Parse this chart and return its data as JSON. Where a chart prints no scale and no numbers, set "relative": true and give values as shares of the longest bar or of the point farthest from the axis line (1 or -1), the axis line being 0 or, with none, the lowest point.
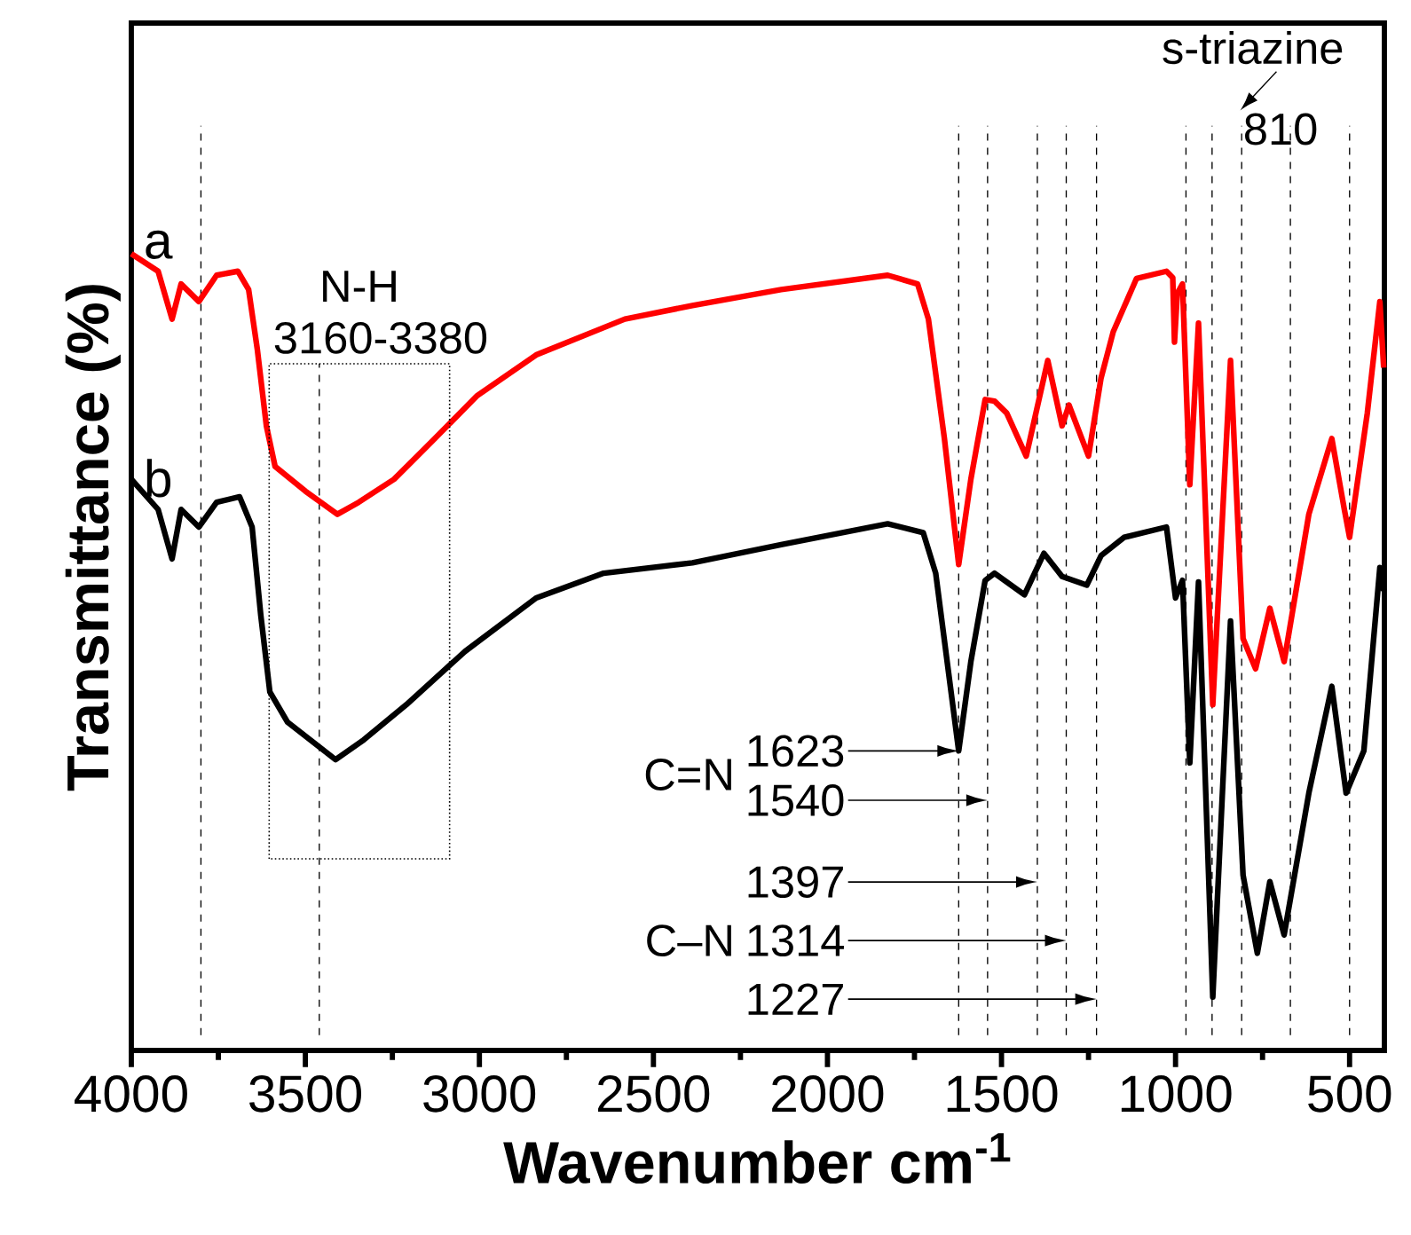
{
  "chart_data": {
    "type": "line",
    "relative": true,
    "xlabel": "Wavenumber cm$^{-1}$",
    "ylabel": "Transmittance (%)",
    "xlim": [
      4000,
      400
    ],
    "xticks": [
      4000,
      {
        "value": 3750,
        "label": null
      },
      3500,
      {
        "value": 3250,
        "label": null
      },
      3000,
      {
        "value": 2750,
        "label": null
      },
      2500,
      {
        "value": 2250,
        "label": null
      },
      2000,
      {
        "value": 1750,
        "label": null
      },
      1500,
      {
        "value": 1250,
        "label": null
      },
      1000,
      {
        "value": 750,
        "label": null
      },
      500
    ],
    "series": [
      {
        "name": "a",
        "color": "#ff0000",
        "x": [
          4000,
          3923,
          3883,
          3857,
          3806,
          3755,
          3694,
          3663,
          3638,
          3612,
          3587,
          3500,
          3408,
          3347,
          3245,
          3128,
          3006,
          2837,
          2582,
          2388,
          2133,
          1827,
          1741,
          1710,
          1664,
          1623,
          1588,
          1547,
          1520,
          1485,
          1429,
          1367,
          1326,
          1306,
          1250,
          1214,
          1179,
          1112,
          1026,
          1008,
          1003,
          995,
          980,
          959,
          934,
          893,
          842,
          806,
          770,
          729,
          688,
          617,
          551,
          515,
          500,
          449,
          413,
          402
        ],
        "values": [
          1.0,
          0.978,
          0.918,
          0.962,
          0.94,
          0.973,
          0.978,
          0.955,
          0.88,
          0.784,
          0.733,
          0.702,
          0.673,
          0.688,
          0.717,
          0.768,
          0.822,
          0.873,
          0.918,
          0.935,
          0.955,
          0.973,
          0.962,
          0.918,
          0.768,
          0.61,
          0.717,
          0.817,
          0.815,
          0.8,
          0.746,
          0.866,
          0.784,
          0.81,
          0.746,
          0.844,
          0.902,
          0.969,
          0.978,
          0.97,
          0.889,
          0.95,
          0.962,
          0.71,
          0.913,
          0.434,
          0.866,
          0.517,
          0.479,
          0.555,
          0.488,
          0.673,
          0.768,
          0.679,
          0.644,
          0.8,
          0.94,
          0.857
        ]
      },
      {
        "name": "b",
        "color": "#000000",
        "x": [
          4000,
          3923,
          3883,
          3857,
          3806,
          3755,
          3689,
          3653,
          3628,
          3602,
          3551,
          3413,
          3332,
          3210,
          3041,
          2837,
          2643,
          2388,
          2133,
          1827,
          1725,
          1689,
          1623,
          1588,
          1547,
          1520,
          1434,
          1378,
          1326,
          1255,
          1214,
          1148,
          1026,
          1000,
          980,
          959,
          934,
          893,
          842,
          806,
          765,
          729,
          688,
          617,
          551,
          510,
          459,
          413,
          402
        ],
        "values": [
          0.717,
          0.679,
          0.617,
          0.679,
          0.657,
          0.688,
          0.695,
          0.657,
          0.546,
          0.45,
          0.412,
          0.365,
          0.39,
          0.434,
          0.501,
          0.568,
          0.599,
          0.612,
          0.635,
          0.661,
          0.65,
          0.599,
          0.376,
          0.488,
          0.59,
          0.599,
          0.572,
          0.624,
          0.595,
          0.584,
          0.621,
          0.644,
          0.657,
          0.568,
          0.59,
          0.361,
          0.588,
          0.067,
          0.539,
          0.22,
          0.122,
          0.212,
          0.145,
          0.323,
          0.457,
          0.323,
          0.376,
          0.606,
          0.577
        ]
      }
    ],
    "ref_lines": [
      {
        "axis": "x",
        "value": 3800,
        "line_style": "dashed"
      },
      {
        "axis": "x",
        "value": 3460,
        "line_style": "dashed"
      },
      {
        "axis": "x",
        "value": 1623,
        "line_style": "dashed"
      },
      {
        "axis": "x",
        "value": 1540,
        "line_style": "dashed"
      },
      {
        "axis": "x",
        "value": 1397,
        "line_style": "dashed"
      },
      {
        "axis": "x",
        "value": 1314,
        "line_style": "dashed"
      },
      {
        "axis": "x",
        "value": 1227,
        "line_style": "dashed"
      },
      {
        "axis": "x",
        "value": 970,
        "line_style": "dashed"
      },
      {
        "axis": "x",
        "value": 895,
        "line_style": "dashed"
      },
      {
        "axis": "x",
        "value": 810,
        "line_style": "dashed"
      },
      {
        "axis": "x",
        "value": 670,
        "line_style": "dashed"
      },
      {
        "axis": "x",
        "value": 500,
        "line_style": "dashed"
      }
    ],
    "annotations": [
      "C=N",
      "C–N",
      "s-triazine",
      "810",
      "N-H",
      "3160-3380",
      {
        "text": "1623",
        "x": 1623,
        "y": 0.376
      },
      "1540",
      "1397",
      "1314",
      "1227"
    ]
  }
}
